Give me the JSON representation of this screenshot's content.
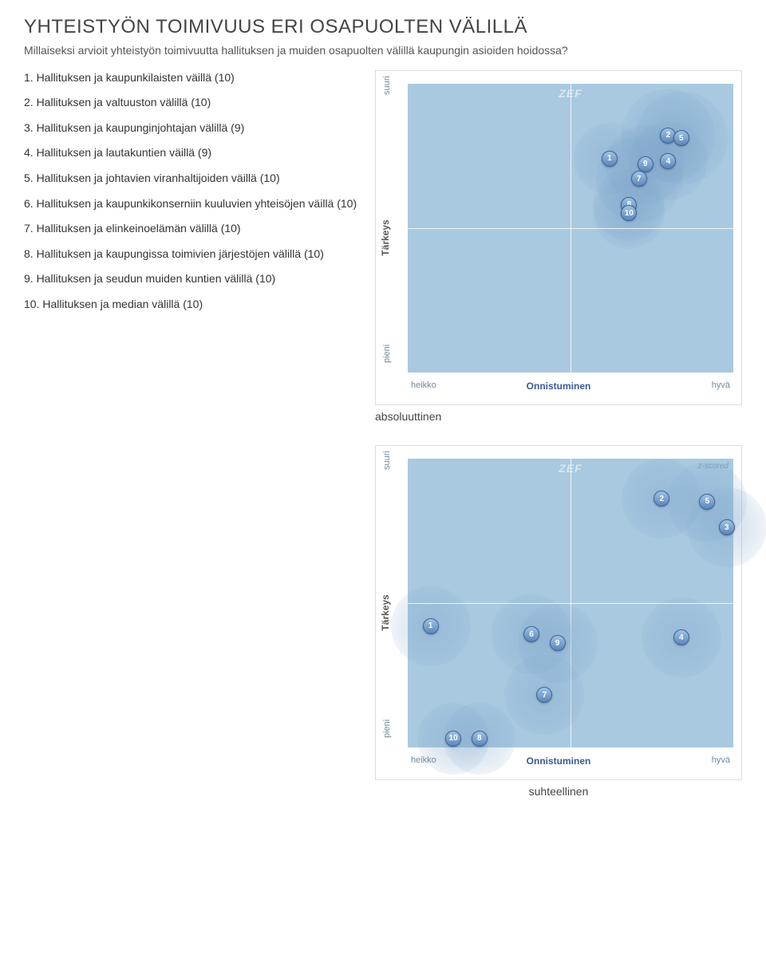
{
  "title": "YHTEISTYÖN TOIMIVUUS ERI OSAPUOLTEN VÄLILLÄ",
  "subtitle": "Millaiseksi arvioit yhteistyön toimivuutta hallituksen ja muiden osapuolten välillä kaupungin asioiden hoidossa?",
  "items": [
    "1. Hallituksen ja kaupunkilaisten väillä (10)",
    "2. Hallituksen ja valtuuston välillä (10)",
    "3. Hallituksen ja kaupunginjohtajan välillä (9)",
    "4. Hallituksen ja lautakuntien väillä (9)",
    "5. Hallituksen ja johtavien viranhaltijoiden väillä (10)",
    "6. Hallituksen ja kaupunkikonserniin kuuluvien yhteisöjen väillä (10)",
    "7. Hallituksen ja elinkeinoelämän välillä (10)",
    "8. Hallituksen ja kaupungissa toimivien järjestöjen välillä (10)",
    "9. Hallituksen ja seudun muiden kuntien välillä (10)",
    "10. Hallituksen ja median välillä (10)"
  ],
  "chart_common": {
    "plot_bg": "#a9c9e0",
    "node_fill_top": "#9fc3e6",
    "node_fill_bottom": "#5b86ba",
    "node_border": "#3e6393",
    "halo_color": "rgba(120,160,200,0.35)",
    "ylabel": "Tärkeys",
    "xlabel": "Onnistuminen",
    "ymax": "suuri",
    "ymin": "pieni",
    "xmin": "heikko",
    "xmax": "hyvä",
    "zef": "ZEF",
    "zscored": "z-scored"
  },
  "chart_abs": {
    "caption": "absoluuttinen",
    "halo_radius_base": 45,
    "points": [
      {
        "n": "1",
        "x": 0.62,
        "y": 0.74,
        "halo": 1.0
      },
      {
        "n": "2",
        "x": 0.8,
        "y": 0.82,
        "halo": 1.3
      },
      {
        "n": "5",
        "x": 0.84,
        "y": 0.81,
        "halo": 1.3
      },
      {
        "n": "4",
        "x": 0.8,
        "y": 0.73,
        "halo": 1.1
      },
      {
        "n": "9",
        "x": 0.73,
        "y": 0.72,
        "halo": 1.1
      },
      {
        "n": "7",
        "x": 0.71,
        "y": 0.67,
        "halo": 1.2
      },
      {
        "n": "8",
        "x": 0.68,
        "y": 0.58,
        "halo": 1.0
      },
      {
        "n": "10",
        "x": 0.68,
        "y": 0.55,
        "halo": 1.0
      }
    ]
  },
  "chart_rel": {
    "caption": "suhteellinen",
    "halo_radius_base": 50,
    "points": [
      {
        "n": "2",
        "x": 0.78,
        "y": 0.86,
        "halo": 1.0
      },
      {
        "n": "5",
        "x": 0.92,
        "y": 0.85,
        "halo": 1.0
      },
      {
        "n": "3",
        "x": 0.98,
        "y": 0.76,
        "halo": 1.0
      },
      {
        "n": "1",
        "x": 0.07,
        "y": 0.42,
        "halo": 1.0
      },
      {
        "n": "6",
        "x": 0.38,
        "y": 0.39,
        "halo": 1.0
      },
      {
        "n": "9",
        "x": 0.46,
        "y": 0.36,
        "halo": 1.0
      },
      {
        "n": "4",
        "x": 0.84,
        "y": 0.38,
        "halo": 1.0
      },
      {
        "n": "7",
        "x": 0.42,
        "y": 0.18,
        "halo": 1.0
      },
      {
        "n": "10",
        "x": 0.14,
        "y": 0.03,
        "halo": 0.9
      },
      {
        "n": "8",
        "x": 0.22,
        "y": 0.03,
        "halo": 0.9
      }
    ]
  }
}
